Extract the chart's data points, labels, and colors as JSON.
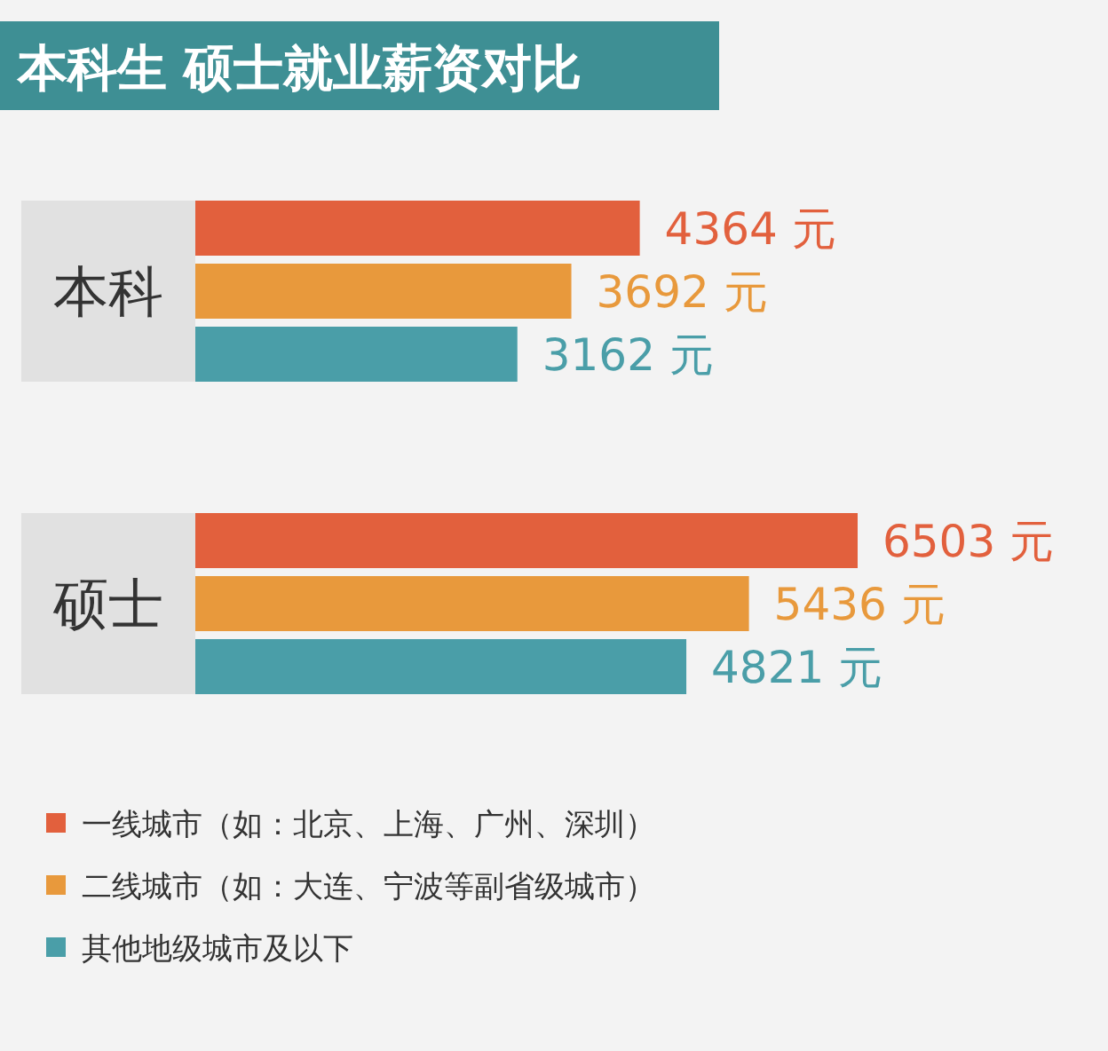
{
  "chart_data": {
    "type": "bar",
    "orientation": "horizontal",
    "title": "本科生 硕士就业薪资对比",
    "categories": [
      "本科",
      "硕士"
    ],
    "legend": "bottom",
    "series": [
      {
        "name": "一线城市（如：北京、上海、广州、深圳）",
        "color": "#e2603d",
        "values": [
          4364,
          6503
        ],
        "value_labels": [
          "4364 元",
          "6503 元"
        ]
      },
      {
        "name": "二线城市（如：大连、宁波等副省级城市）",
        "color": "#e8993c",
        "values": [
          3692,
          5436
        ],
        "value_labels": [
          "3692 元",
          "5436 元"
        ]
      },
      {
        "name": "其他地级城市及以下",
        "color": "#4a9ea8",
        "values": [
          3162,
          4821
        ],
        "value_labels": [
          "3162 元",
          "4821 元"
        ]
      }
    ]
  }
}
